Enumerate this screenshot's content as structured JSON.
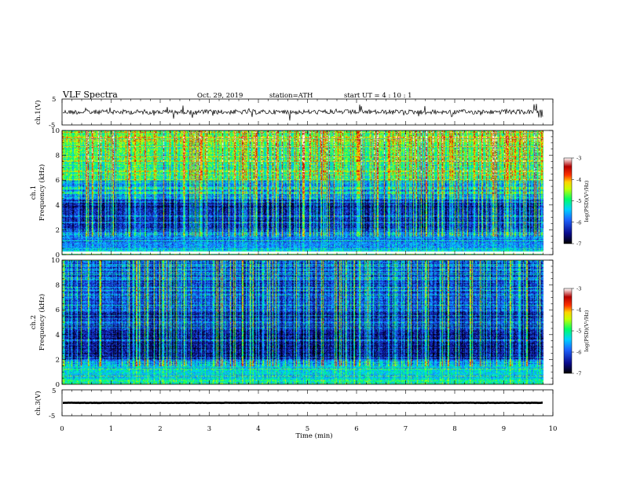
{
  "header": {
    "title": "VLF  Spectra",
    "date": "Oct. 29, 2019",
    "station": "station=ATH",
    "start": "start  UT  =   4  : 10 : 1"
  },
  "chart_data": [
    {
      "type": "line",
      "panel": "ch1-waveform",
      "ylabel": "ch.1(V)",
      "xlim": [
        0,
        10
      ],
      "ylim": [
        -5,
        5
      ],
      "yticks": [
        "5",
        "-5"
      ],
      "x_end": 9.8,
      "baseline": 0.0
    },
    {
      "type": "heatmap",
      "panel": "ch1-spectrogram",
      "ylabel": "ch.1\nFrequency  (kHz)",
      "ylabel_lines": [
        "ch.1",
        "Frequency  (kHz)"
      ],
      "xlim": [
        0,
        10
      ],
      "ylim": [
        0,
        10
      ],
      "yticks": [
        "0",
        "2",
        "4",
        "6",
        "8",
        "10"
      ],
      "x_end": 9.8,
      "colorbar": {
        "label": "log(PSD)(V²/Hz)",
        "range": [
          -7,
          -3
        ],
        "ticks": [
          "-3",
          "-4",
          "-5",
          "-6",
          "-7"
        ]
      }
    },
    {
      "type": "heatmap",
      "panel": "ch2-spectrogram",
      "ylabel": "ch.2\nFrequency  (kHz)",
      "ylabel_lines": [
        "ch.2",
        "Frequency  (kHz)"
      ],
      "xlim": [
        0,
        10
      ],
      "ylim": [
        0,
        10
      ],
      "yticks": [
        "0",
        "2",
        "4",
        "6",
        "8",
        "10"
      ],
      "x_end": 9.8,
      "colorbar": {
        "label": "log(PSD)(V²/Hz)",
        "range": [
          -7,
          -3
        ],
        "ticks": [
          "-3",
          "-4",
          "-5",
          "-6",
          "-7"
        ]
      }
    },
    {
      "type": "line",
      "panel": "ch3-waveform",
      "ylabel": "ch.3(V)",
      "xlim": [
        0,
        10
      ],
      "ylim": [
        -5,
        5
      ],
      "yticks": [
        "5",
        "-5"
      ],
      "x_end": 9.8,
      "baseline": 0.0
    }
  ],
  "xaxis": {
    "label": "Time  (min)",
    "ticks": [
      "0",
      "1",
      "2",
      "3",
      "4",
      "5",
      "6",
      "7",
      "8",
      "9",
      "10"
    ]
  },
  "colors": {
    "colormap": [
      "#000000",
      "#0a0a8c",
      "#1e64ff",
      "#00d2ff",
      "#00ff64",
      "#c8ff00",
      "#ffd200",
      "#ff3200",
      "#b40000",
      "#ffffff"
    ]
  }
}
